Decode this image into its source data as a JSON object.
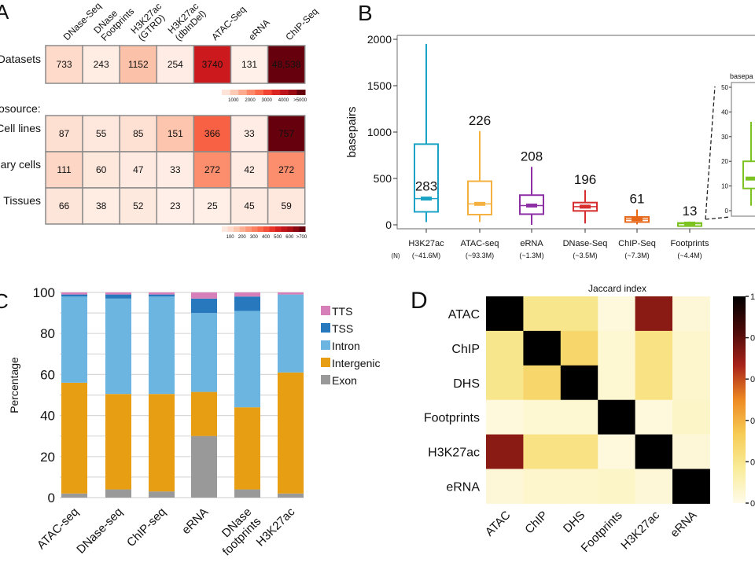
{
  "panel_letters": {
    "a": "A",
    "b": "B",
    "c": "C",
    "d": "D"
  },
  "chart_data": [
    {
      "panel": "A",
      "type": "heatmap",
      "columns": [
        "DNase-Seq",
        [
          "DNase",
          "Footprints"
        ],
        [
          "H3K27ac",
          "(GTRD)"
        ],
        [
          "H3K27ac",
          "(dbInDel)"
        ],
        "ATAC-Seq",
        "eRNA",
        "ChIP-Seq"
      ],
      "top": {
        "rows": [
          "Datasets"
        ],
        "values": [
          [
            733,
            243,
            1152,
            254,
            3740,
            131,
            48538
          ]
        ],
        "labels": [
          [
            "733",
            "243",
            "1152",
            "254",
            "3740",
            "131",
            "48,538"
          ]
        ],
        "scale_max": 5000,
        "colorbar_ticks": [
          "1000",
          "2000",
          "3000",
          "4000",
          ">5000"
        ]
      },
      "section_label": "osource:",
      "bottom": {
        "rows": [
          "Cell lines",
          "ary cells",
          "Tissues"
        ],
        "values": [
          [
            87,
            55,
            85,
            151,
            366,
            33,
            757
          ],
          [
            111,
            60,
            47,
            33,
            272,
            42,
            272
          ],
          [
            66,
            38,
            52,
            23,
            25,
            45,
            59
          ]
        ],
        "scale_max": 700,
        "colorbar_ticks": [
          "100",
          "200",
          "300",
          "400",
          "500",
          "600",
          ">700"
        ]
      },
      "colormap": [
        "#fff5f0",
        "#fee0d2",
        "#fcbba1",
        "#fc9272",
        "#fb6a4a",
        "#ef3b2c",
        "#cb181d",
        "#a50f15",
        "#67000d"
      ]
    },
    {
      "panel": "B",
      "type": "box",
      "ylabel": "basepairs",
      "ylim": [
        0,
        2000
      ],
      "yticks": [
        0,
        500,
        1000,
        1500,
        2000
      ],
      "n_label": "(N)",
      "boxes": [
        {
          "name": "H3K27ac",
          "n": "(~41.6M)",
          "whisker_low": 30,
          "q1": 140,
          "median": 283,
          "q3": 870,
          "whisker_high": 1950,
          "median_label": "283",
          "color": "#1ba3c6"
        },
        {
          "name": "ATAC-seq",
          "n": "(~93.3M)",
          "whisker_low": 30,
          "q1": 110,
          "median": 226,
          "q3": 470,
          "whisker_high": 1010,
          "median_label": "226",
          "color": "#f5b13f"
        },
        {
          "name": "eRNA",
          "n": "(~1.3M)",
          "whisker_low": 0,
          "q1": 115,
          "median": 208,
          "q3": 320,
          "whisker_high": 625,
          "median_label": "208",
          "color": "#8e2fa6"
        },
        {
          "name": "DNase-Seq",
          "n": "(~3.5M)",
          "whisker_low": 15,
          "q1": 150,
          "median": 196,
          "q3": 240,
          "whisker_high": 375,
          "median_label": "196",
          "color": "#d62e2e"
        },
        {
          "name": "ChIP-Seq",
          "n": "(~7.3M)",
          "whisker_low": 5,
          "q1": 30,
          "median": 61,
          "q3": 85,
          "whisker_high": 165,
          "median_label": "61",
          "color": "#e8681a"
        },
        {
          "name": "Footprints",
          "n": "(~4.4M)",
          "whisker_low": 2,
          "q1": 9,
          "median": 13,
          "q3": 20,
          "whisker_high": 36,
          "median_label": "13",
          "color": "#7cc322"
        }
      ],
      "inset": {
        "title": "basepa",
        "ylim": [
          0,
          50
        ],
        "yticks": [
          0,
          10,
          20,
          30,
          40,
          50
        ],
        "box": "Footprints"
      }
    },
    {
      "panel": "C",
      "type": "bar",
      "stacked": true,
      "ylabel": "Percentage",
      "ylim": [
        0,
        100
      ],
      "yticks": [
        0,
        20,
        40,
        60,
        80,
        100
      ],
      "grid": true,
      "legend_position": "right",
      "categories": [
        "ATAC-seq",
        "DNase-seq",
        "ChIP-seq",
        "eRNA",
        [
          "DNase",
          "footprints"
        ],
        "H3K27ac"
      ],
      "series": [
        {
          "name": "Exon",
          "color": "#999999",
          "values": [
            2,
            4,
            3,
            30,
            4,
            2
          ]
        },
        {
          "name": "Intergenic",
          "color": "#e89e12",
          "values": [
            54,
            46.5,
            47.5,
            21.5,
            40,
            59
          ]
        },
        {
          "name": "Intron",
          "color": "#6bb5e0",
          "values": [
            42,
            46.5,
            47.5,
            38.5,
            47,
            38
          ]
        },
        {
          "name": "TSS",
          "color": "#2878bd",
          "values": [
            1,
            2,
            1,
            7,
            7,
            0
          ]
        },
        {
          "name": "TTS",
          "color": "#d67fb8",
          "values": [
            1,
            1,
            1,
            3,
            2,
            1
          ]
        }
      ],
      "legend_order": [
        "TTS",
        "TSS",
        "Intron",
        "Intergenic",
        "Exon"
      ]
    },
    {
      "panel": "D",
      "type": "heatmap",
      "title": "Jaccard index",
      "rows": [
        "ATAC",
        "ChIP",
        "DHS",
        "Footprints",
        "H3K27ac",
        "eRNA"
      ],
      "columns": [
        "ATAC",
        "ChIP",
        "DHS",
        "Footprints",
        "H3K27ac",
        "eRNA"
      ],
      "values": [
        [
          1,
          0.2,
          0.2,
          0.03,
          0.72,
          0.04
        ],
        [
          0.2,
          1,
          0.28,
          0.05,
          0.22,
          0.06
        ],
        [
          0.2,
          0.28,
          1,
          0.05,
          0.22,
          0.06
        ],
        [
          0.03,
          0.05,
          0.05,
          1,
          0.03,
          0.07
        ],
        [
          0.72,
          0.22,
          0.22,
          0.03,
          1,
          0.04
        ],
        [
          0.04,
          0.06,
          0.06,
          0.07,
          0.04,
          1
        ]
      ],
      "vlim": [
        0,
        1
      ],
      "colorbar_ticks": [
        "1",
        "0",
        "0",
        "0",
        "0",
        "0"
      ],
      "colormap": [
        "#fffbea",
        "#f9ec9a",
        "#f6cc55",
        "#ee8a22",
        "#a8231a",
        "#4a0a08",
        "#000000"
      ]
    }
  ]
}
